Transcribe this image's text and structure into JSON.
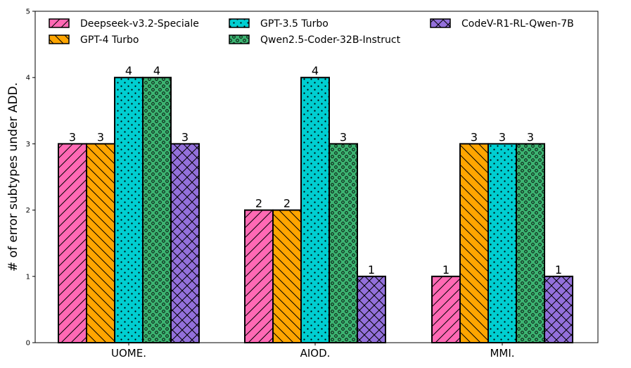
{
  "chart_data": {
    "type": "bar",
    "title": "",
    "xlabel": "",
    "ylabel": "# of error subtypes under ADD.",
    "ylim": [
      0,
      5
    ],
    "yticks": [
      "0",
      "1",
      "2",
      "3",
      "4",
      "5"
    ],
    "categories": [
      "UOME.",
      "AIOD.",
      "MMI."
    ],
    "series": [
      {
        "name": "Deepseek-v3.2-Speciale",
        "values": [
          3,
          2,
          1
        ],
        "color": "#ff69b4",
        "hatch": "diag"
      },
      {
        "name": "GPT-4 Turbo",
        "values": [
          3,
          2,
          3
        ],
        "color": "#ffa500",
        "hatch": "backdiag"
      },
      {
        "name": "GPT-3.5 Turbo",
        "values": [
          4,
          4,
          3
        ],
        "color": "#00ced1",
        "hatch": "dots"
      },
      {
        "name": "Qwen2.5-Coder-32B-Instruct",
        "values": [
          4,
          3,
          3
        ],
        "color": "#3cb371",
        "hatch": "circles"
      },
      {
        "name": "CodeV-R1-RL-Qwen-7B",
        "values": [
          3,
          1,
          1
        ],
        "color": "#9370db",
        "hatch": "cross"
      }
    ],
    "value_labels": [
      [
        "3",
        "2",
        "1"
      ],
      [
        "3",
        "2",
        "3"
      ],
      [
        "4",
        "4",
        "3"
      ],
      [
        "4",
        "3",
        "3"
      ],
      [
        "3",
        "1",
        "1"
      ]
    ],
    "grid": false,
    "legend_position": "top"
  }
}
